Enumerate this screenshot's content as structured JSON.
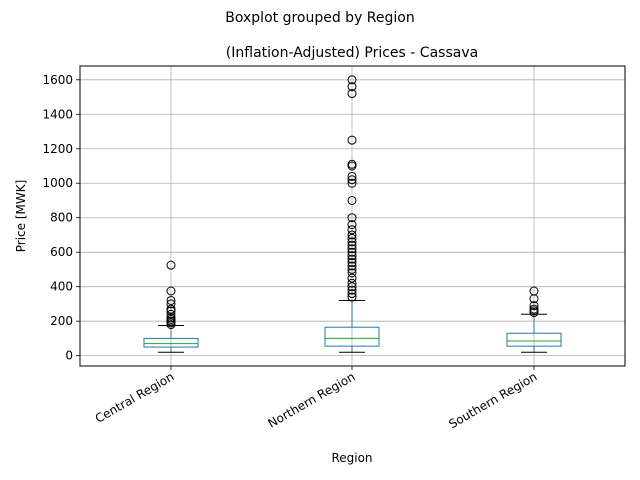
{
  "suptitle": "Boxplot grouped by Region",
  "chart_data": {
    "type": "boxplot",
    "title": "(Inflation-Adjusted) Prices - Cassava",
    "xlabel": "Region",
    "ylabel": "Price [MWK]",
    "ylim": [
      -60,
      1680
    ],
    "yticks": [
      0,
      200,
      400,
      600,
      800,
      1000,
      1200,
      1400,
      1600
    ],
    "grid": true,
    "categories": [
      "Central Region",
      "Northern Region",
      "Southern Region"
    ],
    "boxes": [
      {
        "category": "Central Region",
        "whisker_low": 20,
        "q1": 50,
        "median": 70,
        "q3": 100,
        "whisker_high": 175,
        "outliers": [
          180,
          190,
          200,
          210,
          220,
          240,
          260,
          270,
          300,
          320,
          375,
          525
        ]
      },
      {
        "category": "Northern Region",
        "whisker_low": 20,
        "q1": 55,
        "median": 100,
        "q3": 165,
        "whisker_high": 320,
        "outliers": [
          340,
          360,
          380,
          400,
          420,
          450,
          480,
          500,
          520,
          540,
          560,
          580,
          600,
          620,
          640,
          660,
          680,
          700,
          730,
          760,
          800,
          900,
          1000,
          1020,
          1040,
          1100,
          1110,
          1250,
          1520,
          1560,
          1600
        ]
      },
      {
        "category": "Southern Region",
        "whisker_low": 20,
        "q1": 55,
        "median": 85,
        "q3": 130,
        "whisker_high": 240,
        "outliers": [
          250,
          260,
          270,
          290,
          330,
          375
        ]
      }
    ],
    "colors": {
      "box": "#1f77b4",
      "median": "#2ca02c",
      "grid": "#b0b0b0",
      "outlier": "#000000"
    }
  }
}
